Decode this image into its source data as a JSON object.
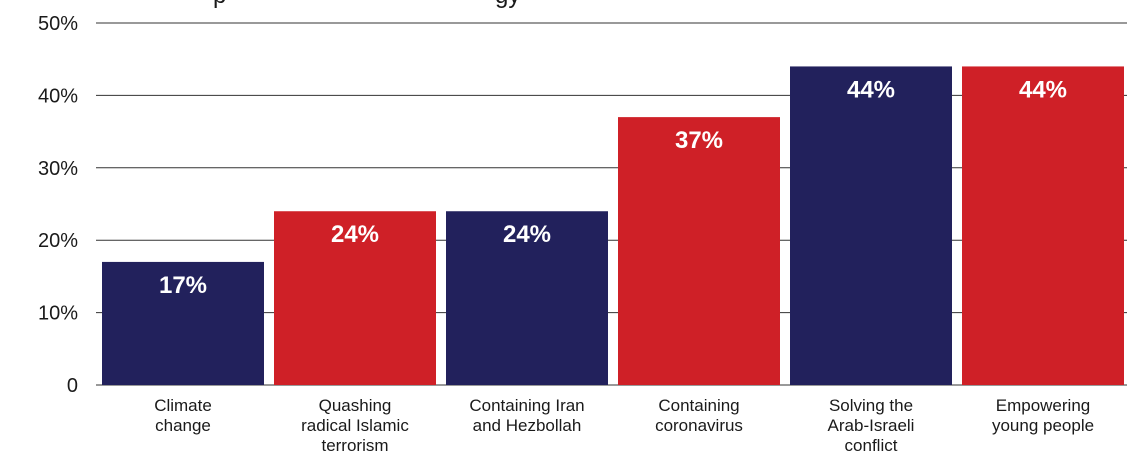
{
  "header": {
    "title_fragment_left": "p",
    "title_fragment_right": "gy"
  },
  "chart_data": {
    "type": "bar",
    "categories": [
      [
        "Climate",
        "change"
      ],
      [
        "Quashing",
        "radical Islamic",
        "terrorism"
      ],
      [
        "Containing Iran",
        "and Hezbollah"
      ],
      [
        "Containing",
        "coronavirus"
      ],
      [
        "Solving the",
        "Arab-Israeli",
        "conflict"
      ],
      [
        "Empowering",
        "young people"
      ]
    ],
    "values": [
      17,
      24,
      24,
      37,
      44,
      44
    ],
    "value_labels": [
      "17%",
      "24%",
      "24%",
      "37%",
      "44%",
      "44%"
    ],
    "bar_colors": [
      "#22215c",
      "#cf2027",
      "#22215c",
      "#cf2027",
      "#22215c",
      "#cf2027"
    ],
    "ylim": [
      0,
      50
    ],
    "yticks": [
      0,
      10,
      20,
      30,
      40,
      50
    ],
    "ytick_labels": [
      "0",
      "10%",
      "20%",
      "30%",
      "40%",
      "50%"
    ],
    "grid": true,
    "gridline_color": "#333333"
  }
}
